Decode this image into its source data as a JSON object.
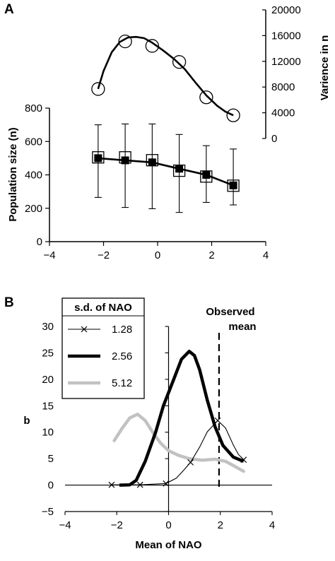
{
  "panel_a_label": "A",
  "panel_b_label": "B",
  "chart_data": [
    {
      "type": "line",
      "panel": "A",
      "x": [
        -2.2,
        -1.2,
        -0.2,
        0.8,
        1.8,
        2.8
      ],
      "xlim": [
        -4,
        4
      ],
      "xticks": [
        -4,
        -2,
        0,
        2,
        4
      ],
      "xlabel": "",
      "ylim_left": [
        0,
        800
      ],
      "yticks_left": [
        0,
        200,
        400,
        600,
        800
      ],
      "ylabel_left": "Population size (n)",
      "ylim_right": [
        0,
        20000
      ],
      "yticks_right": [
        0,
        4000,
        8000,
        12000,
        16000,
        20000
      ],
      "ylabel_right": "Varience in n",
      "grid": false,
      "series": [
        {
          "axis": "right",
          "marker": "open-circle",
          "points": [
            7700,
            15100,
            14400,
            11900,
            6400,
            3600
          ],
          "curve": [
            [
              -2.2,
              7700
            ],
            [
              -2.0,
              10500
            ],
            [
              -1.7,
              13400
            ],
            [
              -1.4,
              15000
            ],
            [
              -1.1,
              15700
            ],
            [
              -0.8,
              15800
            ],
            [
              -0.5,
              15600
            ],
            [
              -0.2,
              14900
            ],
            [
              0.2,
              13700
            ],
            [
              0.6,
              12400
            ],
            [
              1.0,
              10800
            ],
            [
              1.4,
              8700
            ],
            [
              1.8,
              6700
            ],
            [
              2.2,
              5100
            ],
            [
              2.5,
              4200
            ],
            [
              2.8,
              3600
            ]
          ]
        },
        {
          "axis": "left",
          "marker": "filled-square",
          "values": [
            500,
            487,
            475,
            437,
            400,
            337
          ],
          "err_upper": [
            700,
            705,
            705,
            642,
            575,
            555
          ],
          "err_lower": [
            265,
            205,
            197,
            175,
            235,
            220
          ]
        },
        {
          "axis": "left",
          "marker": "open-square",
          "values": [
            505,
            505,
            488,
            425,
            390,
            335
          ]
        }
      ]
    },
    {
      "type": "line",
      "panel": "B",
      "xlabel": "Mean of NAO",
      "ylabel": "b",
      "xlim": [
        -4,
        4
      ],
      "xticks": [
        -4,
        -2,
        0,
        2,
        4
      ],
      "ylim": [
        -5,
        30
      ],
      "yticks": [
        -5,
        0,
        5,
        10,
        15,
        20,
        25,
        30
      ],
      "grid": false,
      "legend": {
        "title": "s.d. of NAO",
        "placement": "top-left"
      },
      "annotation": [
        "Observed",
        "mean"
      ],
      "observed_mean_x": 1.95,
      "series": [
        {
          "name": "1.28",
          "style": "thin-black-x",
          "markers": [
            [
              -2.2,
              0.05
            ],
            [
              -1.1,
              0.05
            ],
            [
              -0.1,
              0.3
            ],
            [
              0.85,
              4.3
            ],
            [
              1.9,
              12.2
            ],
            [
              2.9,
              4.8
            ]
          ],
          "curve": [
            [
              -2.2,
              0.05
            ],
            [
              -1.1,
              0.05
            ],
            [
              -0.1,
              0.3
            ],
            [
              0.3,
              1.3
            ],
            [
              0.6,
              2.9
            ],
            [
              0.85,
              4.3
            ],
            [
              1.2,
              7.2
            ],
            [
              1.5,
              10.1
            ],
            [
              1.9,
              12.2
            ],
            [
              2.2,
              10.8
            ],
            [
              2.5,
              7.6
            ],
            [
              2.7,
              5.8
            ],
            [
              2.9,
              4.8
            ]
          ]
        },
        {
          "name": "2.56",
          "style": "thick-black",
          "curve": [
            [
              -1.9,
              0
            ],
            [
              -1.5,
              0.05
            ],
            [
              -1.25,
              0.9
            ],
            [
              -0.9,
              4.5
            ],
            [
              -0.5,
              10.0
            ],
            [
              -0.2,
              15.0
            ],
            [
              0.2,
              20.0
            ],
            [
              0.5,
              23.8
            ],
            [
              0.8,
              25.3
            ],
            [
              1.0,
              24.5
            ],
            [
              1.2,
              21.8
            ],
            [
              1.5,
              16.0
            ],
            [
              1.8,
              11.0
            ],
            [
              2.1,
              7.5
            ],
            [
              2.5,
              5.3
            ],
            [
              2.9,
              4.5
            ]
          ]
        },
        {
          "name": "5.12",
          "style": "thick-gray",
          "curve": [
            [
              -2.1,
              8.4
            ],
            [
              -1.8,
              10.7
            ],
            [
              -1.5,
              12.7
            ],
            [
              -1.2,
              13.4
            ],
            [
              -0.9,
              12.2
            ],
            [
              -0.6,
              9.9
            ],
            [
              -0.3,
              7.9
            ],
            [
              0.0,
              6.5
            ],
            [
              0.4,
              5.6
            ],
            [
              0.8,
              5.0
            ],
            [
              1.3,
              4.7
            ],
            [
              1.8,
              4.9
            ],
            [
              2.2,
              4.5
            ],
            [
              2.5,
              3.7
            ],
            [
              2.9,
              2.6
            ]
          ]
        }
      ]
    }
  ]
}
